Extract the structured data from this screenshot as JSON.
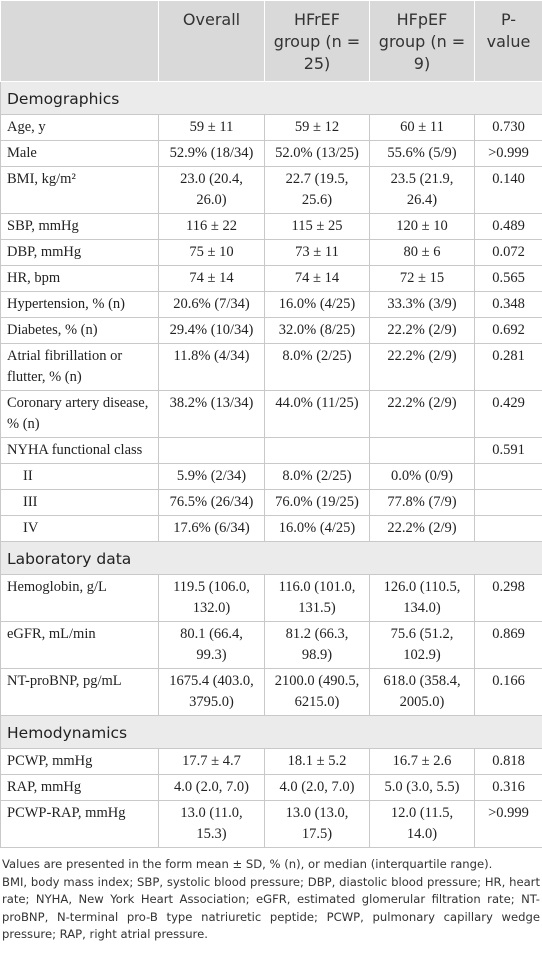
{
  "table": {
    "header": [
      null,
      "Overall",
      "HFrEF group (n = 25)",
      "HFpEF group (n = 9)",
      "P-value"
    ],
    "sections": [
      {
        "title": "Demographics",
        "rows": [
          [
            "Age, y",
            "59 ± 11",
            "59 ± 12",
            "60 ± 11",
            "0.730"
          ],
          [
            "Male",
            "52.9% (18/34)",
            "52.0% (13/25)",
            "55.6% (5/9)",
            ">0.999"
          ],
          [
            "BMI, kg/m²",
            "23.0 (20.4, 26.0)",
            "22.7 (19.5, 25.6)",
            "23.5 (21.9, 26.4)",
            "0.140"
          ],
          [
            "SBP, mmHg",
            "116 ± 22",
            "115 ± 25",
            "120 ± 10",
            "0.489"
          ],
          [
            "DBP, mmHg",
            "75 ± 10",
            "73 ± 11",
            "80 ± 6",
            "0.072"
          ],
          [
            "HR, bpm",
            "74 ± 14",
            "74 ± 14",
            "72 ± 15",
            "0.565"
          ],
          [
            "Hypertension, % (n)",
            "20.6% (7/34)",
            "16.0% (4/25)",
            "33.3% (3/9)",
            "0.348"
          ],
          [
            "Diabetes, % (n)",
            "29.4% (10/34)",
            "32.0% (8/25)",
            "22.2% (2/9)",
            "0.692"
          ],
          [
            "Atrial fibrillation or flutter, % (n)",
            "11.8% (4/34)",
            "8.0% (2/25)",
            "22.2% (2/9)",
            "0.281"
          ],
          [
            "Coronary artery disease, % (n)",
            "38.2% (13/34)",
            "44.0% (11/25)",
            "22.2% (2/9)",
            "0.429"
          ],
          [
            "NYHA functional class",
            null,
            null,
            null,
            "0.591"
          ],
          [
            "II",
            "5.9% (2/34)",
            "8.0% (2/25)",
            "0.0% (0/9)",
            null
          ],
          [
            "III",
            "76.5% (26/34)",
            "76.0% (19/25)",
            "77.8% (7/9)",
            null
          ],
          [
            "IV",
            "17.6% (6/34)",
            "16.0% (4/25)",
            "22.2% (2/9)",
            null
          ]
        ]
      },
      {
        "title": "Laboratory data",
        "rows": [
          [
            "Hemoglobin, g/L",
            "119.5 (106.0, 132.0)",
            "116.0 (101.0, 131.5)",
            "126.0 (110.5, 134.0)",
            "0.298"
          ],
          [
            "eGFR, mL/min",
            "80.1 (66.4, 99.3)",
            "81.2 (66.3, 98.9)",
            "75.6 (51.2, 102.9)",
            "0.869"
          ],
          [
            "NT-proBNP, pg/mL",
            "1675.4 (403.0, 3795.0)",
            "2100.0 (490.5, 6215.0)",
            "618.0 (358.4, 2005.0)",
            "0.166"
          ]
        ]
      },
      {
        "title": "Hemodynamics",
        "rows": [
          [
            "PCWP, mmHg",
            "17.7 ± 4.7",
            "18.1 ± 5.2",
            "16.7 ± 2.6",
            "0.818"
          ],
          [
            "RAP, mmHg",
            "4.0 (2.0, 7.0)",
            "4.0 (2.0, 7.0)",
            "5.0 (3.0, 5.5)",
            "0.316"
          ],
          [
            "PCWP-RAP, mmHg",
            "13.0 (11.0, 15.3)",
            "13.0 (13.0, 17.5)",
            "12.0 (11.5, 14.0)",
            ">0.999"
          ]
        ]
      }
    ]
  },
  "footnote": [
    "Values are presented in the form mean ± SD, % (n), or median (interquartile range).",
    "BMI, body mass index; SBP, systolic blood pressure; DBP, diastolic blood pressure; HR, heart rate; NYHA, New York Heart Association; eGFR, estimated glomerular filtration rate; NT-proBNP, N-terminal pro-B type natriuretic peptide; PCWP, pulmonary capillary wedge pressure; RAP, right atrial pressure."
  ]
}
